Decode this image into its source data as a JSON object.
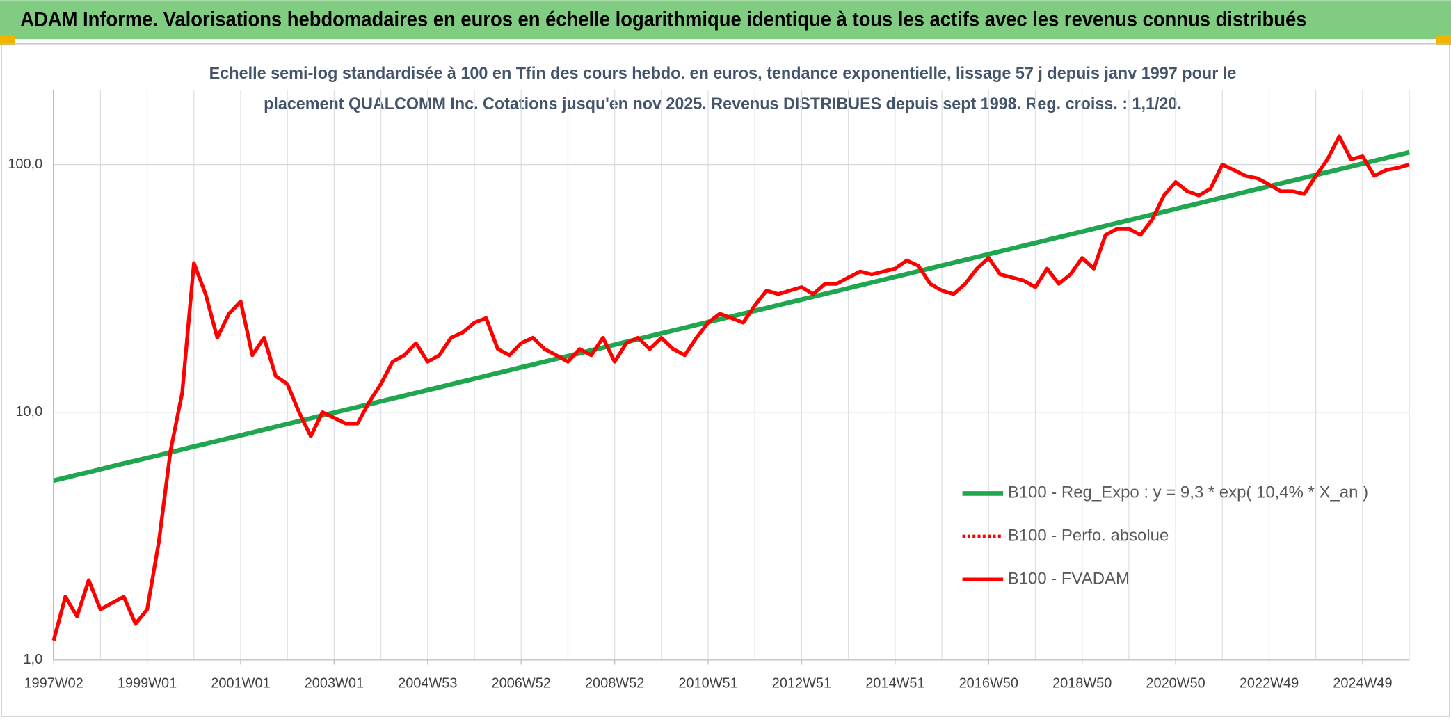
{
  "chart_data": {
    "type": "line",
    "title": "ADAM Informe. Valorisations hebdomadaires en euros en échelle logarithmique identique à tous les actifs avec les revenus connus distribués",
    "subtitle": [
      "Echelle semi-log standardisée à 100 en Tfin des cours hebdo. en euros, tendance exponentielle, lissage 57 j depuis janv 1997 pour le",
      "placement QUALCOMM Inc. Cotations jusqu'en nov 2025. Revenus DISTRIBUES depuis sept 1998. Reg. croiss. : 1,1/20."
    ],
    "log_scale": true,
    "grid": true,
    "legend": "right",
    "ylim": [
      1,
      200
    ],
    "yticks": [
      {
        "value": 1,
        "label": "1,0"
      },
      {
        "value": 10,
        "label": "10,0"
      },
      {
        "value": 100,
        "label": "100,0"
      }
    ],
    "categories": [
      "1997W02",
      null,
      null,
      null,
      null,
      null,
      null,
      null,
      "1999W01",
      null,
      null,
      null,
      null,
      null,
      null,
      null,
      "2001W01",
      null,
      null,
      null,
      null,
      null,
      null,
      null,
      "2003W01",
      null,
      null,
      null,
      null,
      null,
      null,
      null,
      "2004W53",
      null,
      null,
      null,
      null,
      null,
      null,
      null,
      "2006W52",
      null,
      null,
      null,
      null,
      null,
      null,
      null,
      "2008W52",
      null,
      null,
      null,
      null,
      null,
      null,
      null,
      "2010W51",
      null,
      null,
      null,
      null,
      null,
      null,
      null,
      "2012W51",
      null,
      null,
      null,
      null,
      null,
      null,
      null,
      "2014W51",
      null,
      null,
      null,
      null,
      null,
      null,
      null,
      "2016W50",
      null,
      null,
      null,
      null,
      null,
      null,
      null,
      "2018W50",
      null,
      null,
      null,
      null,
      null,
      null,
      null,
      "2020W50",
      null,
      null,
      null,
      null,
      null,
      null,
      null,
      "2022W49",
      null,
      null,
      null,
      null,
      null,
      null,
      null,
      "2024W49",
      null,
      null,
      null,
      null
    ],
    "series": [
      {
        "name": "B100 - Reg_Expo : y = 9,3 * exp( 10,4% *  X_an )",
        "color": "#1fa64e",
        "style": "solid",
        "values": [
          5.3,
          5.44,
          5.59,
          5.73,
          5.89,
          6.05,
          6.21,
          6.37,
          6.54,
          6.71,
          6.89,
          7.08,
          7.27,
          7.46,
          7.66,
          7.86,
          8.07,
          8.29,
          8.51,
          8.74,
          8.97,
          9.21,
          9.46,
          9.71,
          9.97,
          10.23,
          10.5,
          10.78,
          11.07,
          11.36,
          11.67,
          11.98,
          12.3,
          12.62,
          12.96,
          13.31,
          13.66,
          14.03,
          14.4,
          14.78,
          15.18,
          15.58,
          16.0,
          16.43,
          16.86,
          17.31,
          17.78,
          18.25,
          18.74,
          19.24,
          19.75,
          20.28,
          20.82,
          21.37,
          21.94,
          22.53,
          23.13,
          23.72,
          24.36,
          25.01,
          25.67,
          26.36,
          27.06,
          27.78,
          28.52,
          29.28,
          30.06,
          30.86,
          31.69,
          32.53,
          33.4,
          34.29,
          35.21,
          36.15,
          37.11,
          38.1,
          39.12,
          40.16,
          41.23,
          42.33,
          43.46,
          44.62,
          45.81,
          47.03,
          48.28,
          49.57,
          50.89,
          52.25,
          53.64,
          55.07,
          56.54,
          58.05,
          59.59,
          61.18,
          62.81,
          64.49,
          66.21,
          67.97,
          69.78,
          71.64,
          73.55,
          75.51,
          77.53,
          79.59,
          81.71,
          83.89,
          86.13,
          88.42,
          90.78,
          93.2,
          95.68,
          98.23,
          100.85,
          103.54,
          106.3,
          109.13,
          112.04
        ]
      },
      {
        "name": "B100 - Perfo. absolue",
        "color": "#ff0000",
        "style": "dotted",
        "values": [
          1.2,
          1.8,
          1.5,
          2.1,
          1.6,
          1.7,
          1.8,
          1.4,
          1.6,
          3.0,
          7,
          12,
          40,
          30,
          20,
          25,
          28,
          17,
          20,
          14,
          13,
          10,
          8,
          10,
          9.5,
          9,
          9,
          11,
          13,
          16,
          17,
          19,
          16,
          17,
          20,
          21,
          23,
          24,
          18,
          17,
          19,
          20,
          18,
          17,
          16,
          18,
          17,
          20,
          16,
          19,
          20,
          18,
          20,
          18,
          17,
          20,
          23,
          25,
          24,
          23,
          27,
          31,
          30,
          31,
          32,
          30,
          33,
          33,
          35,
          37,
          36,
          37,
          38,
          41,
          39,
          33,
          31,
          30,
          33,
          38,
          42,
          36,
          35,
          34,
          32,
          38,
          33,
          36,
          42,
          38,
          52,
          55,
          55,
          52,
          60,
          75,
          85,
          78,
          75,
          80,
          100,
          95,
          90,
          88,
          83,
          78,
          78,
          76,
          90,
          105,
          130,
          105,
          108,
          90,
          95,
          97,
          100
        ]
      },
      {
        "name": "B100 - FVADAM",
        "color": "#ff0000",
        "style": "solid",
        "values": [
          1.2,
          1.8,
          1.5,
          2.1,
          1.6,
          1.7,
          1.8,
          1.4,
          1.6,
          3.0,
          7,
          12,
          40,
          30,
          20,
          25,
          28,
          17,
          20,
          14,
          13,
          10,
          8,
          10,
          9.5,
          9,
          9,
          11,
          13,
          16,
          17,
          19,
          16,
          17,
          20,
          21,
          23,
          24,
          18,
          17,
          19,
          20,
          18,
          17,
          16,
          18,
          17,
          20,
          16,
          19,
          20,
          18,
          20,
          18,
          17,
          20,
          23,
          25,
          24,
          23,
          27,
          31,
          30,
          31,
          32,
          30,
          33,
          33,
          35,
          37,
          36,
          37,
          38,
          41,
          39,
          33,
          31,
          30,
          33,
          38,
          42,
          36,
          35,
          34,
          32,
          38,
          33,
          36,
          42,
          38,
          52,
          55,
          55,
          52,
          60,
          75,
          85,
          78,
          75,
          80,
          100,
          95,
          90,
          88,
          83,
          78,
          78,
          76,
          90,
          105,
          130,
          105,
          108,
          90,
          95,
          97,
          100
        ]
      }
    ]
  }
}
